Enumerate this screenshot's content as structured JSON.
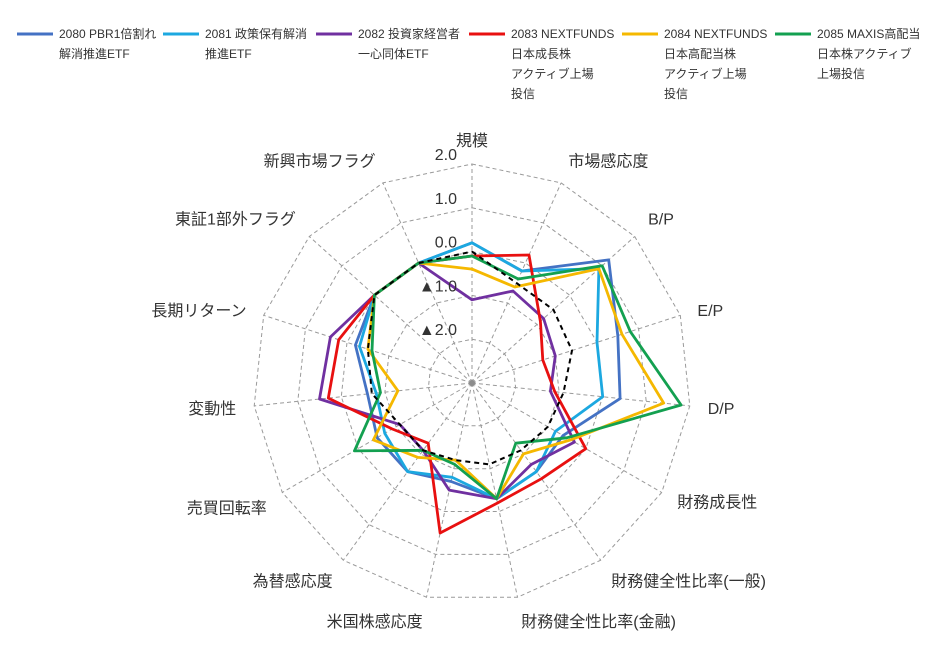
{
  "chart_data": {
    "type": "radar",
    "categories": [
      "規模",
      "市場感応度",
      "B/P",
      "E/P",
      "D/P",
      "財務成長性",
      "財務健全性比率(一般)",
      "財務健全性比率(金融)",
      "米国株感応度",
      "為替感応度",
      "売買回転率",
      "変動性",
      "長期リターン",
      "東証1部外フラグ",
      "新興市場フラグ"
    ],
    "rmin": -3,
    "rmax": 2,
    "ticks": [
      {
        "value": 2,
        "label": "2.0"
      },
      {
        "value": 1,
        "label": "1.0"
      },
      {
        "value": 0,
        "label": "0.0"
      },
      {
        "value": -1,
        "label": "▲1.0"
      },
      {
        "value": -2,
        "label": "▲2.0"
      }
    ],
    "gridlines": "dashed",
    "legend_position": "top",
    "series": [
      {
        "name_lines": [
          "2080 PBR1倍割れ",
          "解消推進ETF"
        ],
        "color": "#4472c4",
        "values": [
          0.2,
          -0.2,
          1.2,
          0.5,
          0.4,
          -0.6,
          -0.5,
          -0.3,
          -0.7,
          -0.5,
          -0.5,
          -0.6,
          -0.2,
          0.0,
          0.0
        ]
      },
      {
        "name_lines": [
          "2081 政策保有解消",
          "推進ETF"
        ],
        "color": "#1ca8e0",
        "values": [
          0.2,
          -0.2,
          0.9,
          0.0,
          0.0,
          -0.8,
          -0.5,
          -0.3,
          -0.8,
          -0.5,
          -0.7,
          -0.8,
          -0.3,
          0.0,
          0.0
        ]
      },
      {
        "name_lines": [
          "2082 投資家経営者",
          "一心同体ETF"
        ],
        "color": "#7030a0",
        "values": [
          -1.1,
          -0.7,
          -0.8,
          -1.0,
          -1.2,
          -0.3,
          -0.7,
          -0.3,
          -0.5,
          -1.1,
          -1.1,
          0.5,
          0.4,
          0.0,
          0.0
        ]
      },
      {
        "name_lines": [
          "2083 NEXTFUNDS",
          "日本成長株",
          "アクティブ上場",
          "投信"
        ],
        "color": "#e81010",
        "values": [
          -0.1,
          0.2,
          -0.9,
          -1.3,
          -1.1,
          0.0,
          -0.3,
          -0.2,
          0.5,
          -1.3,
          -0.9,
          0.3,
          0.2,
          0.0,
          0.0
        ]
      },
      {
        "name_lines": [
          "2084 NEXTFUNDS",
          "日本高配当株",
          "アクティブ上場",
          "投信"
        ],
        "color": "#f5b800",
        "values": [
          -0.4,
          -0.6,
          0.9,
          0.6,
          1.4,
          -0.4,
          -1.0,
          -0.3,
          -1.2,
          -0.9,
          -0.4,
          -1.3,
          -0.5,
          0.0,
          0.0
        ]
      },
      {
        "name_lines": [
          "2085 MAXIS高配当",
          "日本株アクティブ",
          "上場投信"
        ],
        "color": "#13a050",
        "values": [
          -0.1,
          -0.4,
          1.0,
          0.8,
          1.8,
          -0.5,
          -1.3,
          -0.3,
          -1.1,
          -1.1,
          0.1,
          -0.9,
          -0.6,
          0.0,
          0.0
        ]
      },
      {
        "name_lines": [],
        "color": "#000000",
        "dashed": true,
        "values": [
          0.0,
          -0.5,
          -0.5,
          -0.6,
          -0.9,
          -1.0,
          -1.1,
          -1.1,
          -1.2,
          -1.1,
          -1.1,
          -0.7,
          -0.5,
          0.0,
          0.0
        ]
      }
    ]
  }
}
